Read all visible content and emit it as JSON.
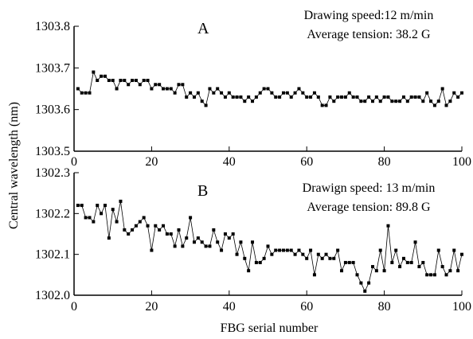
{
  "figure": {
    "ylabel": "Central wavelength (nm)",
    "xlabel": "FBG serial number"
  },
  "chart_data": [
    {
      "type": "line",
      "panel": "A",
      "title": "",
      "annotation_line1": "Drawing speed:12 m/min",
      "annotation_line2": "Average tension: 38.2 G",
      "xlabel": "FBG serial number",
      "ylabel": "Central wavelength (nm)",
      "xlim": [
        0,
        100
      ],
      "ylim": [
        1303.5,
        1303.8
      ],
      "xticks": [
        0,
        20,
        40,
        60,
        80,
        100
      ],
      "xtick_labels": [
        "0",
        "20",
        "40",
        "60",
        "80",
        "100"
      ],
      "yticks": [
        1303.5,
        1303.6,
        1303.7,
        1303.8
      ],
      "ytick_labels": [
        "1303.5",
        "1303.6",
        "1303.7",
        "1303.8"
      ],
      "grid": false,
      "series": [
        {
          "color": "#000000",
          "x": [
            1,
            2,
            3,
            4,
            5,
            6,
            7,
            8,
            9,
            10,
            11,
            12,
            13,
            14,
            15,
            16,
            17,
            18,
            19,
            20,
            21,
            22,
            23,
            24,
            25,
            26,
            27,
            28,
            29,
            30,
            31,
            32,
            33,
            34,
            35,
            36,
            37,
            38,
            39,
            40,
            41,
            42,
            43,
            44,
            45,
            46,
            47,
            48,
            49,
            50,
            51,
            52,
            53,
            54,
            55,
            56,
            57,
            58,
            59,
            60,
            61,
            62,
            63,
            64,
            65,
            66,
            67,
            68,
            69,
            70,
            71,
            72,
            73,
            74,
            75,
            76,
            77,
            78,
            79,
            80,
            81,
            82,
            83,
            84,
            85,
            86,
            87,
            88,
            89,
            90,
            91,
            92,
            93,
            94,
            95,
            96,
            97,
            98,
            99,
            100
          ],
          "values": [
            1303.65,
            1303.64,
            1303.64,
            1303.64,
            1303.69,
            1303.67,
            1303.68,
            1303.68,
            1303.67,
            1303.67,
            1303.65,
            1303.67,
            1303.67,
            1303.66,
            1303.67,
            1303.67,
            1303.66,
            1303.67,
            1303.67,
            1303.65,
            1303.66,
            1303.66,
            1303.65,
            1303.65,
            1303.65,
            1303.64,
            1303.66,
            1303.66,
            1303.63,
            1303.64,
            1303.63,
            1303.64,
            1303.62,
            1303.61,
            1303.65,
            1303.64,
            1303.65,
            1303.64,
            1303.63,
            1303.64,
            1303.63,
            1303.63,
            1303.63,
            1303.62,
            1303.63,
            1303.62,
            1303.63,
            1303.64,
            1303.65,
            1303.65,
            1303.64,
            1303.63,
            1303.63,
            1303.64,
            1303.64,
            1303.63,
            1303.64,
            1303.65,
            1303.64,
            1303.63,
            1303.63,
            1303.64,
            1303.63,
            1303.61,
            1303.61,
            1303.63,
            1303.62,
            1303.63,
            1303.63,
            1303.63,
            1303.64,
            1303.63,
            1303.63,
            1303.62,
            1303.62,
            1303.63,
            1303.62,
            1303.63,
            1303.62,
            1303.63,
            1303.63,
            1303.62,
            1303.62,
            1303.62,
            1303.63,
            1303.62,
            1303.63,
            1303.63,
            1303.63,
            1303.62,
            1303.64,
            1303.62,
            1303.61,
            1303.62,
            1303.65,
            1303.61,
            1303.62,
            1303.64,
            1303.63,
            1303.64
          ]
        }
      ]
    },
    {
      "type": "line",
      "panel": "B",
      "title": "",
      "annotation_line1": "Drawign speed: 13 m/min",
      "annotation_line2": "Average tension: 89.8 G",
      "xlabel": "FBG serial number",
      "ylabel": "Central wavelength (nm)",
      "xlim": [
        0,
        100
      ],
      "ylim": [
        1302.0,
        1302.3
      ],
      "xticks": [
        0,
        20,
        40,
        60,
        80,
        100
      ],
      "xtick_labels": [
        "0",
        "20",
        "40",
        "60",
        "80",
        "100"
      ],
      "yticks": [
        1302.0,
        1302.1,
        1302.2,
        1302.3
      ],
      "ytick_labels": [
        "1302.0",
        "1302.1",
        "1302.2",
        "1302.3"
      ],
      "grid": false,
      "series": [
        {
          "color": "#000000",
          "x": [
            1,
            2,
            3,
            4,
            5,
            6,
            7,
            8,
            9,
            10,
            11,
            12,
            13,
            14,
            15,
            16,
            17,
            18,
            19,
            20,
            21,
            22,
            23,
            24,
            25,
            26,
            27,
            28,
            29,
            30,
            31,
            32,
            33,
            34,
            35,
            36,
            37,
            38,
            39,
            40,
            41,
            42,
            43,
            44,
            45,
            46,
            47,
            48,
            49,
            50,
            51,
            52,
            53,
            54,
            55,
            56,
            57,
            58,
            59,
            60,
            61,
            62,
            63,
            64,
            65,
            66,
            67,
            68,
            69,
            70,
            71,
            72,
            73,
            74,
            75,
            76,
            77,
            78,
            79,
            80,
            81,
            82,
            83,
            84,
            85,
            86,
            87,
            88,
            89,
            90,
            91,
            92,
            93,
            94,
            95,
            96,
            97,
            98,
            99,
            100
          ],
          "values": [
            1302.22,
            1302.22,
            1302.19,
            1302.19,
            1302.18,
            1302.22,
            1302.2,
            1302.22,
            1302.14,
            1302.21,
            1302.18,
            1302.23,
            1302.16,
            1302.15,
            1302.16,
            1302.17,
            1302.18,
            1302.19,
            1302.17,
            1302.11,
            1302.17,
            1302.16,
            1302.17,
            1302.15,
            1302.15,
            1302.12,
            1302.16,
            1302.12,
            1302.14,
            1302.19,
            1302.13,
            1302.14,
            1302.13,
            1302.12,
            1302.12,
            1302.16,
            1302.13,
            1302.11,
            1302.15,
            1302.14,
            1302.15,
            1302.1,
            1302.13,
            1302.09,
            1302.06,
            1302.13,
            1302.08,
            1302.08,
            1302.09,
            1302.12,
            1302.1,
            1302.11,
            1302.11,
            1302.11,
            1302.11,
            1302.11,
            1302.1,
            1302.11,
            1302.1,
            1302.09,
            1302.11,
            1302.05,
            1302.1,
            1302.09,
            1302.1,
            1302.09,
            1302.09,
            1302.11,
            1302.06,
            1302.08,
            1302.08,
            1302.08,
            1302.05,
            1302.03,
            1302.01,
            1302.03,
            1302.07,
            1302.06,
            1302.11,
            1302.06,
            1302.17,
            1302.08,
            1302.11,
            1302.07,
            1302.09,
            1302.08,
            1302.08,
            1302.13,
            1302.07,
            1302.08,
            1302.05,
            1302.05,
            1302.05,
            1302.11,
            1302.07,
            1302.05,
            1302.06,
            1302.11,
            1302.06,
            1302.1
          ]
        }
      ]
    }
  ]
}
